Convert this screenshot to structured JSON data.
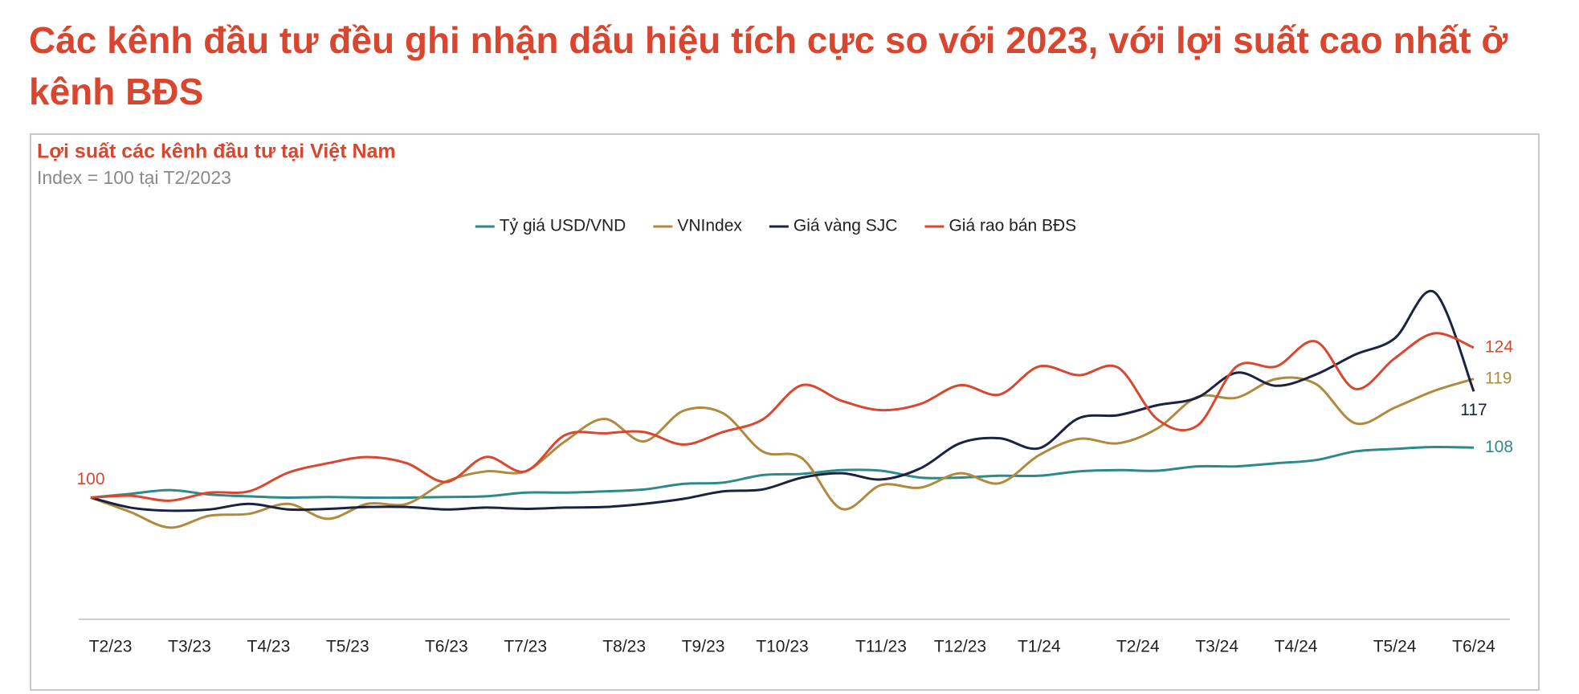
{
  "title": "Các kênh đầu tư đều ghi nhận dấu hiệu tích cực so với 2023, với lợi suất cao nhất ở kênh BĐS",
  "chart_data": {
    "type": "line",
    "title": "Lợi suất các kênh đầu tư tại Việt Nam",
    "subtitle": "Index = 100 tại T2/2023",
    "x": [
      0,
      2,
      4,
      6,
      8,
      10,
      12,
      14,
      16,
      18,
      20,
      22,
      24,
      26,
      28,
      30,
      32,
      34,
      36,
      38,
      40,
      42,
      44,
      46,
      48,
      50,
      52,
      54,
      56,
      58,
      60,
      62,
      64,
      66,
      68,
      70
    ],
    "xlim": [
      0,
      70
    ],
    "xticks": [
      {
        "value": 1,
        "label": "T2/23"
      },
      {
        "value": 5,
        "label": "T3/23"
      },
      {
        "value": 9,
        "label": "T4/23"
      },
      {
        "value": 13,
        "label": "T5/23"
      },
      {
        "value": 18,
        "label": "T6/23"
      },
      {
        "value": 22,
        "label": "T7/23"
      },
      {
        "value": 27,
        "label": "T8/23"
      },
      {
        "value": 31,
        "label": "T9/23"
      },
      {
        "value": 35,
        "label": "T10/23"
      },
      {
        "value": 40,
        "label": "T11/23"
      },
      {
        "value": 44,
        "label": "T12/23"
      },
      {
        "value": 48,
        "label": "T1/24"
      },
      {
        "value": 53,
        "label": "T2/24"
      },
      {
        "value": 57,
        "label": "T3/24"
      },
      {
        "value": 61,
        "label": "T4/24"
      },
      {
        "value": 66,
        "label": "T5/24"
      },
      {
        "value": 70,
        "label": "T6/24"
      }
    ],
    "ylim": [
      80,
      138
    ],
    "legend": "top",
    "series": [
      {
        "name": "Tỷ giá USD/VND",
        "color": "#2e8a8a",
        "values": [
          100,
          100.6,
          101.2,
          100.5,
          100.2,
          100,
          100.1,
          100,
          100,
          100.1,
          100.2,
          100.8,
          100.8,
          101,
          101.3,
          102.2,
          102.4,
          103.6,
          103.8,
          104.4,
          104.3,
          103.2,
          103.2,
          103.5,
          103.5,
          104.2,
          104.4,
          104.3,
          105,
          105,
          105.5,
          106,
          107.4,
          107.8,
          108.1,
          108
        ]
      },
      {
        "name": "VNIndex",
        "color": "#b08a3e",
        "values": [
          100,
          97.7,
          95.2,
          97.1,
          97.4,
          99,
          96.6,
          99,
          99,
          102.6,
          104.2,
          104.2,
          109,
          112.6,
          109,
          113.9,
          113.5,
          107.4,
          106.3,
          98.2,
          102,
          101.6,
          103.9,
          102.3,
          106.8,
          109.4,
          108.7,
          111.1,
          116.1,
          116,
          119,
          118.2,
          111.9,
          114.4,
          117.1,
          119
        ]
      },
      {
        "name": "Giá vàng SJC",
        "color": "#1c2340",
        "values": [
          100,
          98.4,
          97.9,
          98.1,
          99,
          98.1,
          98.2,
          98.5,
          98.5,
          98.1,
          98.4,
          98.2,
          98.4,
          98.5,
          99,
          99.8,
          101,
          101.3,
          103.2,
          103.9,
          102.9,
          104.7,
          108.7,
          109.5,
          107.9,
          112.7,
          113.2,
          114.8,
          116,
          120,
          117.9,
          119.7,
          122.9,
          125.5,
          132.9,
          117
        ]
      },
      {
        "name": "Giá rao bán BĐS",
        "color": "#d9472f",
        "values": [
          100,
          100.3,
          99.5,
          100.8,
          101,
          104,
          105.5,
          106.5,
          105.5,
          102.5,
          106.5,
          104.2,
          110,
          110.3,
          110.5,
          108.5,
          110.5,
          112.5,
          118,
          115.5,
          114,
          115,
          118,
          116.5,
          121,
          119.6,
          120.8,
          112.5,
          111.5,
          121,
          121,
          125,
          117.4,
          122.3,
          126.3,
          124
        ]
      }
    ]
  }
}
